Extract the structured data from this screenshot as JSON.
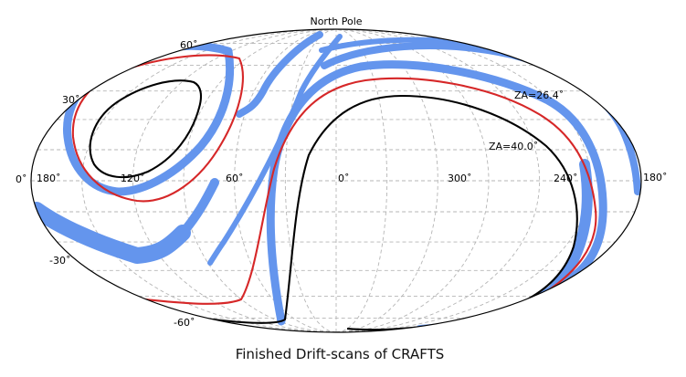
{
  "figure": {
    "top_label": "North Pole",
    "title": "Finished Drift-scans of CRAFTS",
    "projection": "mollweide",
    "graticule": "dashed grey",
    "band_color": "#6495ed",
    "lat_labels": [
      {
        "text": "60˚",
        "lat": 60
      },
      {
        "text": "30˚",
        "lat": 30
      },
      {
        "text": "0˚",
        "lat": 0
      },
      {
        "text": "-30˚",
        "lat": -30
      },
      {
        "text": "-60˚",
        "lat": -60
      }
    ],
    "lon_labels": [
      {
        "text": "180˚",
        "lon": 180,
        "side": "left"
      },
      {
        "text": "120˚",
        "lon": 120
      },
      {
        "text": "60˚",
        "lon": 60
      },
      {
        "text": "0˚",
        "lon": 0
      },
      {
        "text": "300˚",
        "lon": 300
      },
      {
        "text": "240˚",
        "lon": 240
      },
      {
        "text": "180˚",
        "lon": 180,
        "side": "right"
      }
    ],
    "contours": [
      {
        "label": "ZA=26.4˚",
        "color": "#d62728"
      },
      {
        "label": "ZA=40.0˚",
        "color": "#000000"
      }
    ]
  }
}
